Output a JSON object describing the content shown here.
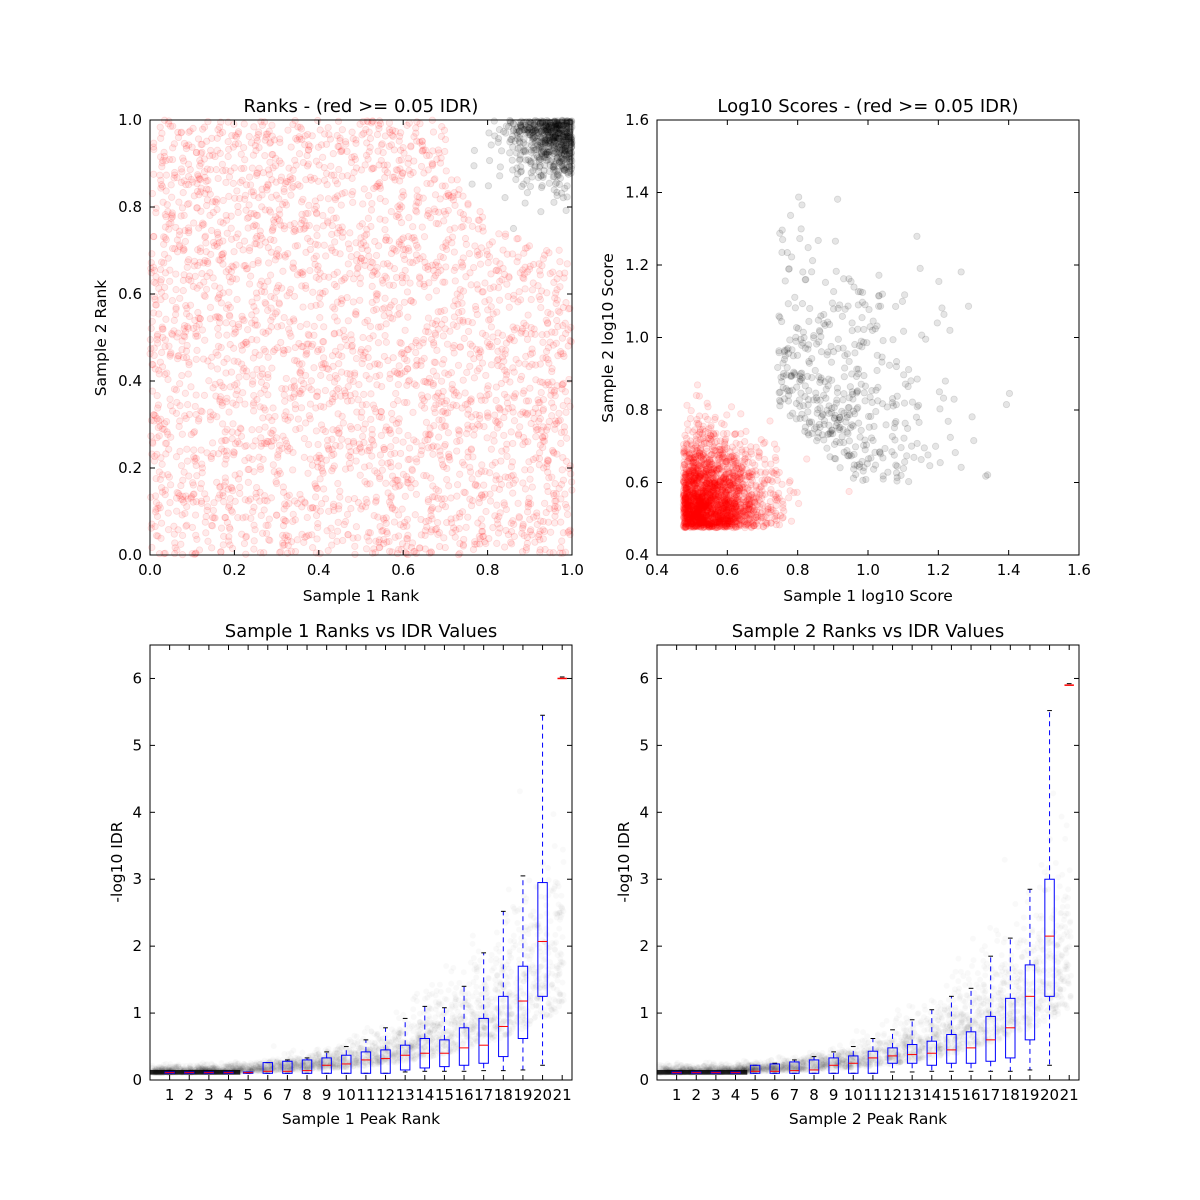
{
  "chart_data": [
    {
      "type": "scatter",
      "title": "Ranks - (red >= 0.05 IDR)",
      "xlabel": "Sample 1 Rank",
      "ylabel": "Sample 2 Rank",
      "xlim": [
        0.0,
        1.0
      ],
      "ylim": [
        0.0,
        1.0
      ],
      "xticks": [
        "0.0",
        "0.2",
        "0.4",
        "0.6",
        "0.8",
        "1.0"
      ],
      "yticks": [
        "0.0",
        "0.2",
        "0.4",
        "0.6",
        "0.8",
        "1.0"
      ],
      "series": [
        {
          "color": "#ff0000",
          "region": "uniform over the square except the top-right corner",
          "approx_points": 3000
        },
        {
          "color": "#000000",
          "region": "top-right corner, x + y high (rank ~0.8 to 1.0)",
          "approx_points": 600
        }
      ]
    },
    {
      "type": "scatter",
      "title": "Log10 Scores - (red >= 0.05 IDR)",
      "xlabel": "Sample 1 log10 Score",
      "ylabel": "Sample 2 log10 Score",
      "xlim": [
        0.4,
        1.6
      ],
      "ylim": [
        0.4,
        1.6
      ],
      "xticks": [
        "0.4",
        "0.6",
        "0.8",
        "1.0",
        "1.2",
        "1.4",
        "1.6"
      ],
      "yticks": [
        "0.4",
        "0.6",
        "0.8",
        "1.0",
        "1.2",
        "1.4",
        "1.6"
      ],
      "series": [
        {
          "color": "#ff0000",
          "region": "dense cluster near (0.47-0.8, 0.47-0.8), floor at 0.47",
          "approx_points": 2200
        },
        {
          "color": "#000000",
          "region": "spread above the red cluster, x 0.75-1.48, y 0.55-1.44",
          "approx_points": 450
        }
      ]
    },
    {
      "type": "box",
      "title": "Sample 1 Ranks vs IDR Values",
      "xlabel": "Sample 1 Peak Rank",
      "ylabel": "-log10 IDR",
      "ylim": [
        0,
        6.5
      ],
      "yticks": [
        "0",
        "1",
        "2",
        "3",
        "4",
        "5",
        "6"
      ],
      "categories": [
        "1",
        "2",
        "3",
        "4",
        "5",
        "6",
        "7",
        "8",
        "9",
        "10",
        "11",
        "12",
        "13",
        "14",
        "15",
        "16",
        "17",
        "18",
        "19",
        "20",
        "21"
      ],
      "boxes": [
        {
          "q1": 0.1,
          "median": 0.11,
          "q3": 0.12,
          "whisker_low": 0.1,
          "whisker_high": 0.12
        },
        {
          "q1": 0.1,
          "median": 0.11,
          "q3": 0.12,
          "whisker_low": 0.1,
          "whisker_high": 0.12
        },
        {
          "q1": 0.1,
          "median": 0.11,
          "q3": 0.12,
          "whisker_low": 0.1,
          "whisker_high": 0.12
        },
        {
          "q1": 0.1,
          "median": 0.11,
          "q3": 0.12,
          "whisker_low": 0.1,
          "whisker_high": 0.12
        },
        {
          "q1": 0.1,
          "median": 0.11,
          "q3": 0.12,
          "whisker_low": 0.1,
          "whisker_high": 0.12
        },
        {
          "q1": 0.1,
          "median": 0.13,
          "q3": 0.26,
          "whisker_low": 0.1,
          "whisker_high": 0.26
        },
        {
          "q1": 0.1,
          "median": 0.13,
          "q3": 0.28,
          "whisker_low": 0.1,
          "whisker_high": 0.3
        },
        {
          "q1": 0.1,
          "median": 0.14,
          "q3": 0.3,
          "whisker_low": 0.1,
          "whisker_high": 0.33
        },
        {
          "q1": 0.1,
          "median": 0.22,
          "q3": 0.33,
          "whisker_low": 0.1,
          "whisker_high": 0.42
        },
        {
          "q1": 0.1,
          "median": 0.24,
          "q3": 0.37,
          "whisker_low": 0.1,
          "whisker_high": 0.5
        },
        {
          "q1": 0.1,
          "median": 0.3,
          "q3": 0.42,
          "whisker_low": 0.1,
          "whisker_high": 0.6
        },
        {
          "q1": 0.1,
          "median": 0.32,
          "q3": 0.45,
          "whisker_low": 0.1,
          "whisker_high": 0.78
        },
        {
          "q1": 0.15,
          "median": 0.37,
          "q3": 0.52,
          "whisker_low": 0.12,
          "whisker_high": 0.92
        },
        {
          "q1": 0.18,
          "median": 0.4,
          "q3": 0.62,
          "whisker_low": 0.13,
          "whisker_high": 1.1
        },
        {
          "q1": 0.2,
          "median": 0.4,
          "q3": 0.6,
          "whisker_low": 0.13,
          "whisker_high": 1.08
        },
        {
          "q1": 0.22,
          "median": 0.48,
          "q3": 0.78,
          "whisker_low": 0.13,
          "whisker_high": 1.4
        },
        {
          "q1": 0.25,
          "median": 0.52,
          "q3": 0.92,
          "whisker_low": 0.14,
          "whisker_high": 1.9
        },
        {
          "q1": 0.35,
          "median": 0.8,
          "q3": 1.25,
          "whisker_low": 0.14,
          "whisker_high": 2.52
        },
        {
          "q1": 0.62,
          "median": 1.18,
          "q3": 1.7,
          "whisker_low": 0.15,
          "whisker_high": 3.05
        },
        {
          "q1": 1.25,
          "median": 2.07,
          "q3": 2.95,
          "whisker_low": 0.22,
          "whisker_high": 5.45
        },
        {
          "q1": 6.0,
          "median": 6.0,
          "q3": 6.0,
          "whisker_low": 6.0,
          "whisker_high": 6.0
        }
      ]
    },
    {
      "type": "box",
      "title": "Sample 2 Ranks vs IDR Values",
      "xlabel": "Sample 2 Peak Rank",
      "ylabel": "-log10 IDR",
      "ylim": [
        0,
        6.5
      ],
      "yticks": [
        "0",
        "1",
        "2",
        "3",
        "4",
        "5",
        "6"
      ],
      "categories": [
        "1",
        "2",
        "3",
        "4",
        "5",
        "6",
        "7",
        "8",
        "9",
        "10",
        "11",
        "12",
        "13",
        "14",
        "15",
        "16",
        "17",
        "18",
        "19",
        "20",
        "21"
      ],
      "boxes": [
        {
          "q1": 0.1,
          "median": 0.11,
          "q3": 0.12,
          "whisker_low": 0.1,
          "whisker_high": 0.12
        },
        {
          "q1": 0.1,
          "median": 0.11,
          "q3": 0.12,
          "whisker_low": 0.1,
          "whisker_high": 0.12
        },
        {
          "q1": 0.1,
          "median": 0.11,
          "q3": 0.12,
          "whisker_low": 0.1,
          "whisker_high": 0.12
        },
        {
          "q1": 0.1,
          "median": 0.11,
          "q3": 0.12,
          "whisker_low": 0.1,
          "whisker_high": 0.12
        },
        {
          "q1": 0.1,
          "median": 0.13,
          "q3": 0.22,
          "whisker_low": 0.1,
          "whisker_high": 0.22
        },
        {
          "q1": 0.1,
          "median": 0.13,
          "q3": 0.24,
          "whisker_low": 0.1,
          "whisker_high": 0.25
        },
        {
          "q1": 0.1,
          "median": 0.14,
          "q3": 0.27,
          "whisker_low": 0.1,
          "whisker_high": 0.3
        },
        {
          "q1": 0.1,
          "median": 0.15,
          "q3": 0.3,
          "whisker_low": 0.1,
          "whisker_high": 0.35
        },
        {
          "q1": 0.1,
          "median": 0.22,
          "q3": 0.33,
          "whisker_low": 0.1,
          "whisker_high": 0.42
        },
        {
          "q1": 0.1,
          "median": 0.25,
          "q3": 0.36,
          "whisker_low": 0.1,
          "whisker_high": 0.5
        },
        {
          "q1": 0.1,
          "median": 0.33,
          "q3": 0.43,
          "whisker_low": 0.1,
          "whisker_high": 0.62
        },
        {
          "q1": 0.25,
          "median": 0.36,
          "q3": 0.48,
          "whisker_low": 0.12,
          "whisker_high": 0.75
        },
        {
          "q1": 0.25,
          "median": 0.38,
          "q3": 0.53,
          "whisker_low": 0.12,
          "whisker_high": 0.9
        },
        {
          "q1": 0.22,
          "median": 0.4,
          "q3": 0.58,
          "whisker_low": 0.13,
          "whisker_high": 1.05
        },
        {
          "q1": 0.25,
          "median": 0.45,
          "q3": 0.68,
          "whisker_low": 0.13,
          "whisker_high": 1.25
        },
        {
          "q1": 0.25,
          "median": 0.48,
          "q3": 0.72,
          "whisker_low": 0.13,
          "whisker_high": 1.37
        },
        {
          "q1": 0.28,
          "median": 0.6,
          "q3": 0.95,
          "whisker_low": 0.13,
          "whisker_high": 1.85
        },
        {
          "q1": 0.33,
          "median": 0.78,
          "q3": 1.22,
          "whisker_low": 0.13,
          "whisker_high": 2.12
        },
        {
          "q1": 0.6,
          "median": 1.25,
          "q3": 1.72,
          "whisker_low": 0.15,
          "whisker_high": 2.85
        },
        {
          "q1": 1.25,
          "median": 2.15,
          "q3": 3.0,
          "whisker_low": 0.22,
          "whisker_high": 5.52
        },
        {
          "q1": 5.9,
          "median": 5.9,
          "q3": 5.9,
          "whisker_low": 5.9,
          "whisker_high": 5.9
        }
      ]
    }
  ]
}
